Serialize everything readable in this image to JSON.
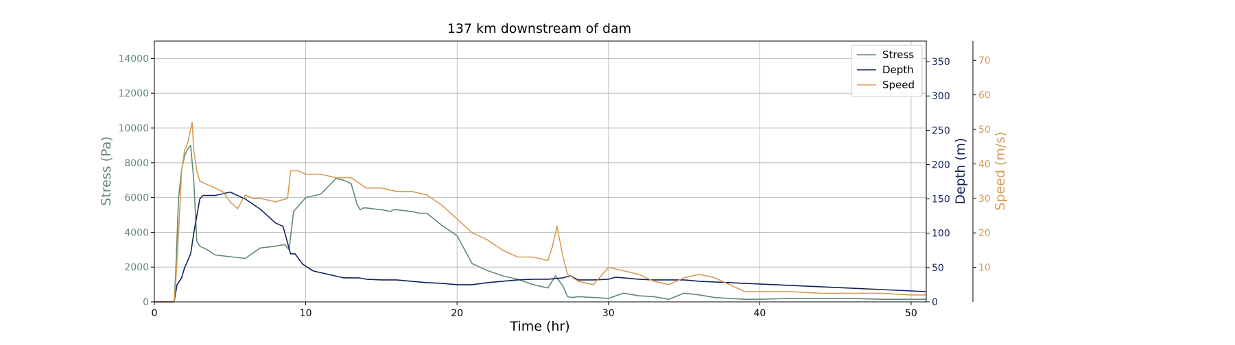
{
  "chart_data": {
    "type": "line",
    "title": "137 km downstream of dam",
    "xlabel": "Time (hr)",
    "xlim": [
      0,
      51
    ],
    "xticks": [
      0,
      10,
      20,
      30,
      40,
      50
    ],
    "grid": true,
    "legend_position": "top-right",
    "axes": {
      "stress": {
        "label": "Stress (Pa)",
        "ylim": [
          0,
          15000
        ],
        "ticks": [
          0,
          2000,
          4000,
          6000,
          8000,
          10000,
          12000,
          14000
        ],
        "color": "#5f8a70"
      },
      "depth": {
        "label": "Depth (m)",
        "ylim": [
          0,
          380
        ],
        "ticks": [
          0,
          50,
          100,
          150,
          200,
          250,
          300,
          350
        ],
        "color": "#10205a"
      },
      "speed": {
        "label": "Speed (m/s)",
        "ylim": [
          0,
          75.6
        ],
        "ticks": [
          10,
          20,
          30,
          40,
          50,
          60,
          70
        ],
        "color": "#d99a55"
      }
    },
    "series": [
      {
        "name": "Stress",
        "axis": "stress",
        "color": "#5f8a70",
        "x": [
          0,
          1.3,
          1.4,
          1.6,
          1.8,
          2.0,
          2.2,
          2.4,
          2.6,
          2.8,
          3.0,
          3.5,
          4.0,
          5.0,
          6.0,
          7.0,
          8.0,
          8.6,
          8.9,
          9.2,
          9.6,
          10,
          11,
          12,
          12.5,
          13,
          13.4,
          13.6,
          13.8,
          14,
          15,
          15.6,
          15.8,
          16,
          17,
          17.5,
          18,
          19,
          20,
          21,
          22,
          23,
          24,
          25,
          26,
          26.5,
          27,
          27.3,
          27.6,
          28,
          29,
          30,
          31,
          32,
          33,
          34,
          35,
          36,
          37,
          38,
          39,
          40,
          42,
          44,
          46,
          48,
          50,
          51
        ],
        "values": [
          0,
          0,
          1500,
          6000,
          7600,
          8400,
          8800,
          9000,
          7000,
          3500,
          3200,
          3000,
          2700,
          2600,
          2500,
          3100,
          3200,
          3300,
          3000,
          5200,
          5600,
          6000,
          6200,
          7100,
          7000,
          6800,
          5600,
          5300,
          5400,
          5400,
          5300,
          5200,
          5300,
          5300,
          5200,
          5100,
          5100,
          4400,
          3800,
          2200,
          1800,
          1500,
          1300,
          1000,
          800,
          1500,
          900,
          300,
          250,
          300,
          250,
          200,
          500,
          350,
          300,
          150,
          500,
          400,
          250,
          200,
          150,
          150,
          200,
          200,
          200,
          150,
          150,
          150
        ]
      },
      {
        "name": "Depth",
        "axis": "depth",
        "color": "#10205a",
        "x": [
          0,
          1.3,
          1.5,
          1.8,
          2.0,
          2.4,
          2.6,
          2.8,
          3.0,
          3.2,
          4.0,
          5.0,
          6.0,
          7.0,
          8.0,
          8.5,
          9.0,
          9.3,
          9.8,
          10.5,
          11.5,
          12.5,
          13.5,
          14.0,
          15,
          16,
          17,
          18,
          19,
          20,
          21,
          22,
          23,
          24,
          25,
          26,
          27,
          27.5,
          28,
          29,
          30,
          30.5,
          31,
          32,
          33,
          34,
          35,
          36,
          38,
          40,
          42,
          44,
          46,
          48,
          50,
          51
        ],
        "values": [
          0,
          0,
          25,
          35,
          50,
          70,
          100,
          125,
          150,
          155,
          155,
          160,
          150,
          135,
          115,
          110,
          70,
          70,
          55,
          45,
          40,
          35,
          35,
          33,
          32,
          32,
          30,
          28,
          27,
          25,
          25,
          28,
          30,
          32,
          33,
          33,
          35,
          38,
          32,
          32,
          33,
          36,
          35,
          33,
          32,
          32,
          32,
          30,
          28,
          26,
          24,
          22,
          20,
          18,
          16,
          15
        ]
      },
      {
        "name": "Speed",
        "axis": "speed",
        "color": "#d99a55",
        "x": [
          0,
          1.3,
          1.4,
          1.6,
          1.8,
          2.0,
          2.2,
          2.5,
          2.6,
          2.8,
          3.0,
          3.5,
          4.0,
          4.5,
          5.0,
          5.5,
          6.0,
          6.5,
          7.0,
          8.0,
          8.8,
          9.0,
          9.5,
          10,
          11,
          12,
          13,
          14,
          15,
          16,
          17,
          18,
          19,
          20,
          21,
          22,
          23,
          24,
          25,
          26,
          26.3,
          26.6,
          27,
          27.3,
          28,
          29,
          30,
          31,
          32,
          33,
          34,
          35,
          36,
          37,
          38,
          39,
          40,
          42,
          44,
          46,
          48,
          50,
          51
        ],
        "values": [
          0,
          0,
          5,
          20,
          38,
          44,
          46,
          52,
          44,
          38,
          35,
          34,
          33,
          32,
          29,
          27,
          31,
          30,
          30,
          29,
          30,
          38,
          38,
          37,
          37,
          36,
          36,
          33,
          33,
          32,
          32,
          31,
          28,
          24,
          20,
          18,
          15,
          13,
          13,
          12,
          16,
          22,
          13,
          8,
          6,
          5,
          10,
          9,
          8,
          6,
          5,
          7,
          8,
          7,
          5,
          3,
          3,
          3,
          2.5,
          2.5,
          2.5,
          2,
          2
        ]
      }
    ]
  }
}
